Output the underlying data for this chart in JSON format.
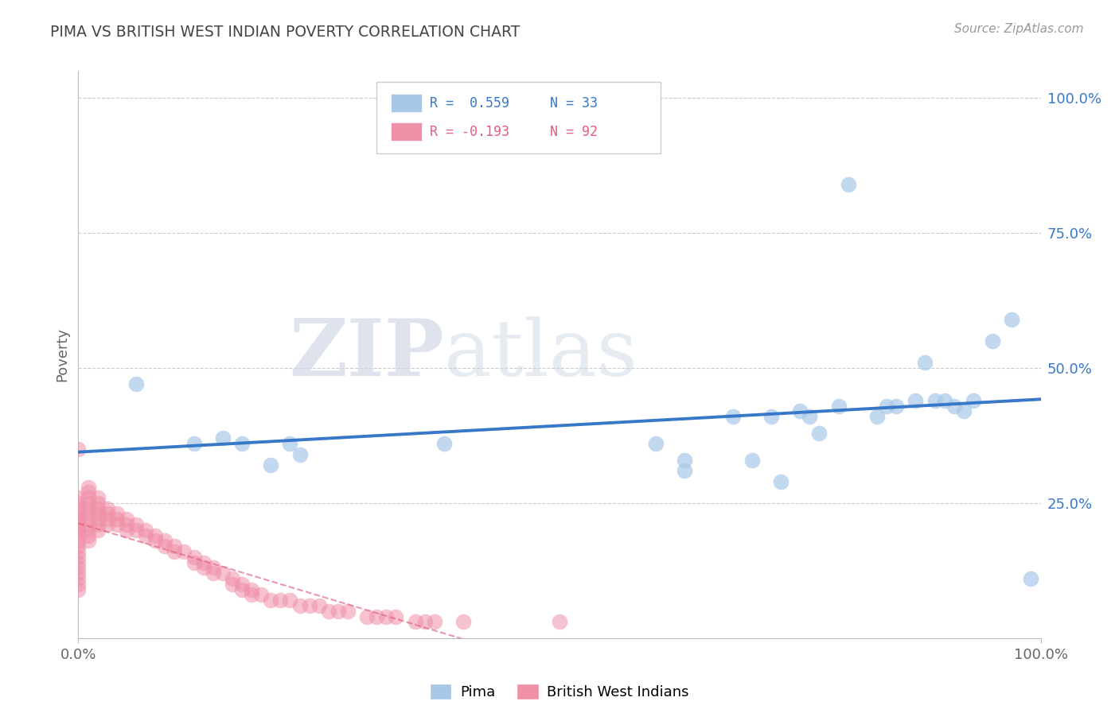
{
  "title": "PIMA VS BRITISH WEST INDIAN POVERTY CORRELATION CHART",
  "source": "Source: ZipAtlas.com",
  "ylabel": "Poverty",
  "xlim": [
    0,
    1
  ],
  "ylim": [
    0,
    1.05
  ],
  "ytick_labels": [
    "25.0%",
    "50.0%",
    "75.0%",
    "100.0%"
  ],
  "ytick_positions": [
    0.25,
    0.5,
    0.75,
    1.0
  ],
  "legend_R1": "R =  0.559",
  "legend_N1": "N = 33",
  "legend_R2": "R = -0.193",
  "legend_N2": "N = 92",
  "pima_color": "#A8C8E8",
  "bwi_color": "#F090A8",
  "pima_line_color": "#3878C8",
  "bwi_line_color": "#E06080",
  "watermark_zip": "ZIP",
  "watermark_atlas": "atlas",
  "pima_x": [
    0.06,
    0.12,
    0.15,
    0.17,
    0.2,
    0.22,
    0.23,
    0.38,
    0.6,
    0.63,
    0.63,
    0.68,
    0.7,
    0.72,
    0.73,
    0.75,
    0.76,
    0.77,
    0.79,
    0.8,
    0.83,
    0.84,
    0.85,
    0.87,
    0.88,
    0.89,
    0.9,
    0.91,
    0.92,
    0.93,
    0.95,
    0.97,
    0.99
  ],
  "pima_y": [
    0.47,
    0.36,
    0.37,
    0.36,
    0.32,
    0.36,
    0.34,
    0.36,
    0.36,
    0.33,
    0.31,
    0.41,
    0.33,
    0.41,
    0.29,
    0.42,
    0.41,
    0.38,
    0.43,
    0.84,
    0.41,
    0.43,
    0.43,
    0.44,
    0.51,
    0.44,
    0.44,
    0.43,
    0.42,
    0.44,
    0.55,
    0.59,
    0.11
  ],
  "bwi_x": [
    0.0,
    0.0,
    0.0,
    0.0,
    0.0,
    0.0,
    0.0,
    0.0,
    0.0,
    0.0,
    0.0,
    0.0,
    0.0,
    0.0,
    0.0,
    0.0,
    0.0,
    0.0,
    0.0,
    0.0,
    0.0,
    0.01,
    0.01,
    0.01,
    0.01,
    0.01,
    0.01,
    0.01,
    0.01,
    0.01,
    0.01,
    0.01,
    0.02,
    0.02,
    0.02,
    0.02,
    0.02,
    0.02,
    0.02,
    0.03,
    0.03,
    0.03,
    0.03,
    0.04,
    0.04,
    0.04,
    0.05,
    0.05,
    0.05,
    0.06,
    0.06,
    0.07,
    0.07,
    0.08,
    0.08,
    0.09,
    0.09,
    0.1,
    0.1,
    0.11,
    0.12,
    0.12,
    0.13,
    0.13,
    0.14,
    0.14,
    0.15,
    0.16,
    0.16,
    0.17,
    0.17,
    0.18,
    0.18,
    0.19,
    0.2,
    0.21,
    0.22,
    0.23,
    0.24,
    0.25,
    0.26,
    0.27,
    0.28,
    0.3,
    0.31,
    0.32,
    0.33,
    0.35,
    0.36,
    0.37,
    0.4,
    0.5
  ],
  "bwi_y": [
    0.26,
    0.25,
    0.24,
    0.23,
    0.22,
    0.22,
    0.21,
    0.2,
    0.2,
    0.19,
    0.18,
    0.17,
    0.16,
    0.15,
    0.14,
    0.13,
    0.12,
    0.11,
    0.1,
    0.09,
    0.35,
    0.28,
    0.27,
    0.26,
    0.25,
    0.24,
    0.23,
    0.22,
    0.21,
    0.2,
    0.19,
    0.18,
    0.26,
    0.25,
    0.24,
    0.23,
    0.22,
    0.21,
    0.2,
    0.24,
    0.23,
    0.22,
    0.21,
    0.23,
    0.22,
    0.21,
    0.22,
    0.21,
    0.2,
    0.21,
    0.2,
    0.2,
    0.19,
    0.19,
    0.18,
    0.18,
    0.17,
    0.17,
    0.16,
    0.16,
    0.15,
    0.14,
    0.14,
    0.13,
    0.13,
    0.12,
    0.12,
    0.11,
    0.1,
    0.1,
    0.09,
    0.09,
    0.08,
    0.08,
    0.07,
    0.07,
    0.07,
    0.06,
    0.06,
    0.06,
    0.05,
    0.05,
    0.05,
    0.04,
    0.04,
    0.04,
    0.04,
    0.03,
    0.03,
    0.03,
    0.03,
    0.03
  ]
}
